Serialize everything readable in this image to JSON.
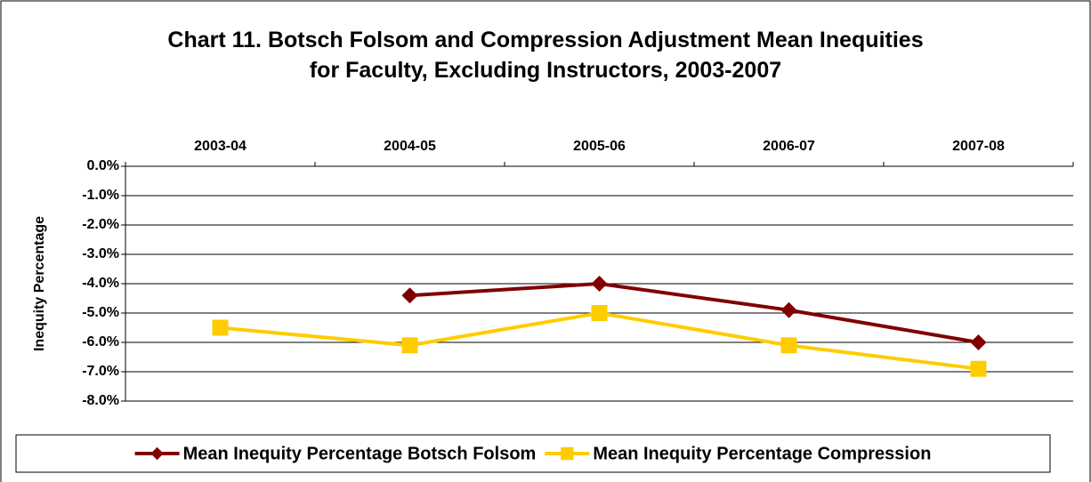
{
  "chart_data": {
    "type": "line",
    "title": "Chart 11. Botsch Folsom and Compression Adjustment Mean Inequities for Faculty, Excluding Instructors, 2003-2007",
    "y_label": "Inequity Percentage",
    "categories": [
      "2003-04",
      "2004-05",
      "2005-06",
      "2006-07",
      "2007-08"
    ],
    "series": [
      {
        "name": "Mean Inequity Percentage Botsch Folsom",
        "color": "#800000",
        "marker": "diamond",
        "values": [
          null,
          -4.4,
          -4.0,
          -4.9,
          -6.0
        ]
      },
      {
        "name": "Mean Inequity Percentage Compression",
        "color": "#FFCC00",
        "marker": "square",
        "values": [
          -5.5,
          -6.1,
          -5.0,
          -6.1,
          -6.9
        ]
      }
    ],
    "ylim": [
      -8,
      0
    ],
    "yticks": [
      {
        "value": 0,
        "label": "0.0%"
      },
      {
        "value": -1,
        "label": "-1.0%"
      },
      {
        "value": -2,
        "label": "-2.0%"
      },
      {
        "value": -3,
        "label": "-3.0%"
      },
      {
        "value": -4,
        "label": "-4.0%"
      },
      {
        "value": -5,
        "label": "-5.0%"
      },
      {
        "value": -6,
        "label": "-6.0%"
      },
      {
        "value": -7,
        "label": "-7.0%"
      },
      {
        "value": -8,
        "label": "-8.0%"
      }
    ],
    "grid": true,
    "legend": "bottom"
  }
}
